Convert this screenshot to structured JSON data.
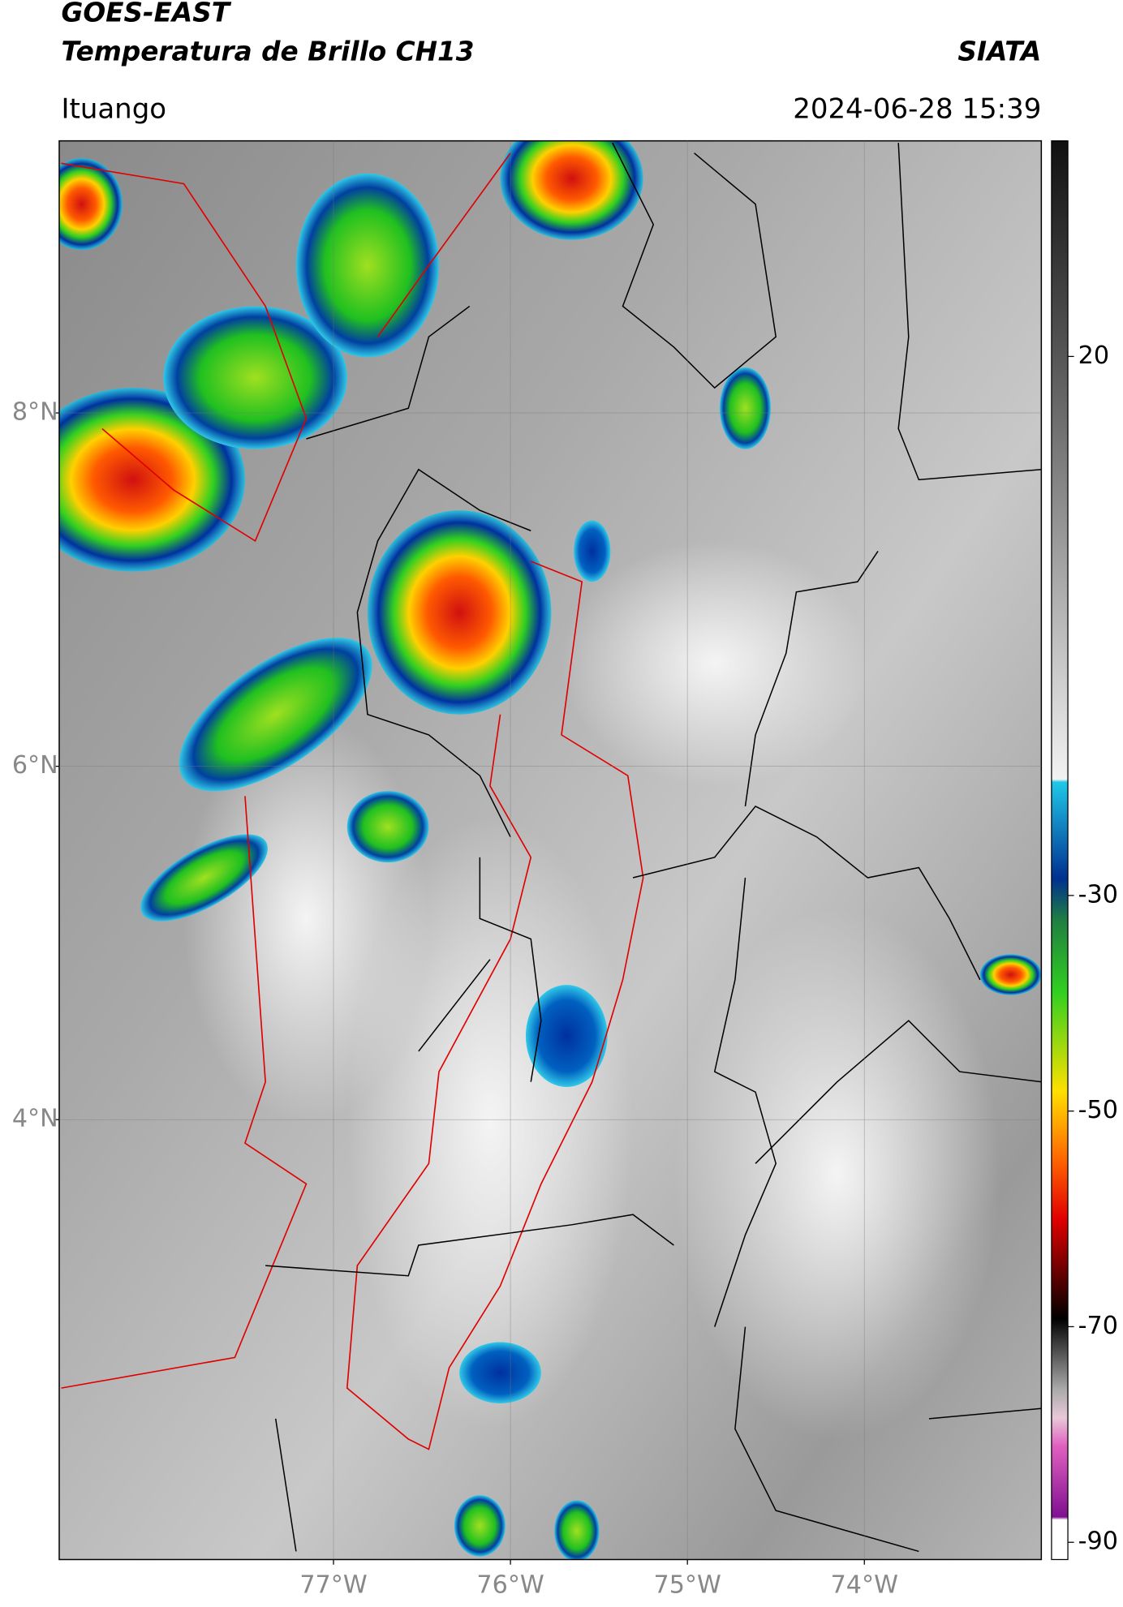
{
  "header": {
    "title": "GOES-EAST",
    "subtitle": "Temperatura de Brillo CH13",
    "source": "SIATA",
    "location": "Ituango",
    "datetime": "2024-06-28 15:39"
  },
  "map": {
    "xlim": [
      -78.55,
      -73.0
    ],
    "ylim": [
      1.51,
      9.54
    ],
    "xticks": [
      {
        "value": -77,
        "label": "77°W"
      },
      {
        "value": -76,
        "label": "76°W"
      },
      {
        "value": -75,
        "label": "75°W"
      },
      {
        "value": -74,
        "label": "74°W"
      }
    ],
    "yticks": [
      {
        "value": 8,
        "label": "8°N"
      },
      {
        "value": 6,
        "label": "6°N"
      },
      {
        "value": 4,
        "label": "4°N"
      }
    ]
  },
  "colorbar": {
    "lim": [
      -91.6,
      40
    ],
    "ticks": [
      20,
      -30,
      -50,
      -70,
      -90
    ]
  }
}
